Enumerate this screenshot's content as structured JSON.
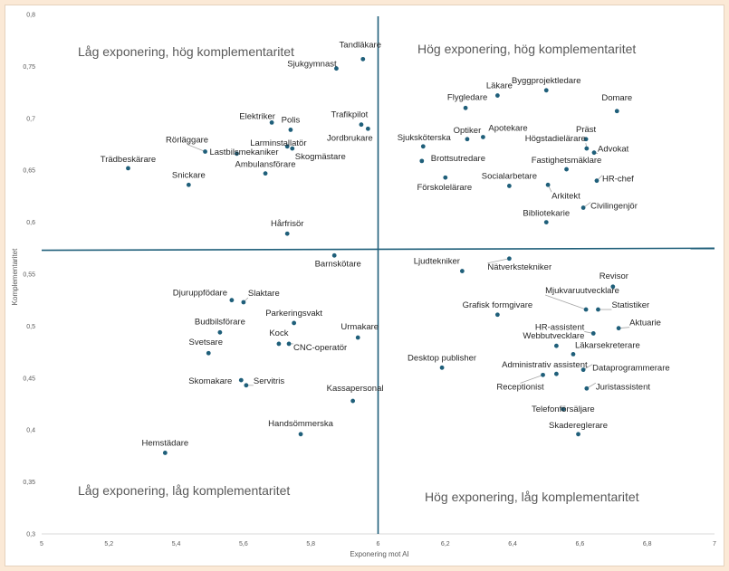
{
  "chart_data": {
    "type": "scatter",
    "xlabel": "Exponering mot AI",
    "ylabel": "Komplementaritet",
    "xlim": [
      5,
      7
    ],
    "ylim": [
      0.3,
      0.8
    ],
    "x_ticks": [
      "5",
      "5,2",
      "5,4",
      "5,6",
      "5,8",
      "6",
      "6,2",
      "6,4",
      "6,6",
      "6,8",
      "7"
    ],
    "y_ticks": [
      "0,3",
      "0,35",
      "0,4",
      "0,45",
      "0,5",
      "0,55",
      "0,6",
      "0,65",
      "0,7",
      "0,75",
      "0,8"
    ],
    "x_tick_values": [
      5,
      5.2,
      5.4,
      5.6,
      5.8,
      6,
      6.2,
      6.4,
      6.6,
      6.8,
      7
    ],
    "y_tick_values": [
      0.3,
      0.35,
      0.4,
      0.45,
      0.5,
      0.55,
      0.6,
      0.65,
      0.7,
      0.75,
      0.8
    ],
    "divider_x": 6.0,
    "divider_y": [
      0.573,
      0.575
    ],
    "grid": false,
    "point_color": "#1f5f7a",
    "quadrant_labels": {
      "top_left": "Låg exponering, hög komplementaritet",
      "top_right": "Hög exponering, hög komplementaritet",
      "bottom_left": "Låg exponering, låg komplementaritet",
      "bottom_right": "Hög exponering, låg komplementaritet"
    },
    "points": [
      {
        "name": "Tandläkare",
        "x": 5.955,
        "y": 0.757
      },
      {
        "name": "Sjukgymnast",
        "x": 5.876,
        "y": 0.748
      },
      {
        "name": "Byggprojektledare",
        "x": 6.5,
        "y": 0.727
      },
      {
        "name": "Läkare",
        "x": 6.355,
        "y": 0.722
      },
      {
        "name": "Flygledare",
        "x": 6.26,
        "y": 0.71
      },
      {
        "name": "Domare",
        "x": 6.71,
        "y": 0.707
      },
      {
        "name": "Elektriker",
        "x": 5.684,
        "y": 0.696
      },
      {
        "name": "Polis",
        "x": 5.74,
        "y": 0.689
      },
      {
        "name": "Trafikpilot",
        "x": 5.95,
        "y": 0.694
      },
      {
        "name": "Jordbrukare",
        "x": 5.97,
        "y": 0.69
      },
      {
        "name": "Larminstallatör",
        "x": 5.73,
        "y": 0.673
      },
      {
        "name": "Skogmästare",
        "x": 5.745,
        "y": 0.671
      },
      {
        "name": "Rörläggare",
        "x": 5.486,
        "y": 0.668
      },
      {
        "name": "Lastbilsmekaniker",
        "x": 5.58,
        "y": 0.666
      },
      {
        "name": "Optiker",
        "x": 6.265,
        "y": 0.68
      },
      {
        "name": "Apotekare",
        "x": 6.312,
        "y": 0.682
      },
      {
        "name": "Sjuksköterska",
        "x": 6.134,
        "y": 0.673
      },
      {
        "name": "Präst",
        "x": 6.618,
        "y": 0.68
      },
      {
        "name": "Högstadielärare",
        "x": 6.62,
        "y": 0.671
      },
      {
        "name": "Advokat",
        "x": 6.642,
        "y": 0.667
      },
      {
        "name": "Brottsutredare",
        "x": 6.13,
        "y": 0.659
      },
      {
        "name": "Fastighetsmäklare",
        "x": 6.56,
        "y": 0.651
      },
      {
        "name": "Trädbeskärare",
        "x": 5.257,
        "y": 0.652
      },
      {
        "name": "Ambulansförare",
        "x": 5.665,
        "y": 0.647
      },
      {
        "name": "Snickare",
        "x": 5.437,
        "y": 0.636
      },
      {
        "name": "Socialarbetare",
        "x": 6.39,
        "y": 0.635
      },
      {
        "name": "Förskolelärare",
        "x": 6.2,
        "y": 0.643
      },
      {
        "name": "Arkitekt",
        "x": 6.505,
        "y": 0.636
      },
      {
        "name": "HR-chef",
        "x": 6.65,
        "y": 0.64
      },
      {
        "name": "Civilingenjör",
        "x": 6.61,
        "y": 0.614
      },
      {
        "name": "Bibliotekarie",
        "x": 6.5,
        "y": 0.6
      },
      {
        "name": "Hårfrisör",
        "x": 5.73,
        "y": 0.589
      },
      {
        "name": "Barnskötare",
        "x": 5.87,
        "y": 0.568
      },
      {
        "name": "Nätverkstekniker",
        "x": 6.39,
        "y": 0.565
      },
      {
        "name": "Ljudtekniker",
        "x": 6.25,
        "y": 0.553
      },
      {
        "name": "Revisor",
        "x": 6.698,
        "y": 0.538
      },
      {
        "name": "Slaktare",
        "x": 5.6,
        "y": 0.523
      },
      {
        "name": "Djuruppfödare",
        "x": 5.565,
        "y": 0.525
      },
      {
        "name": "Mjukvaruutvecklare",
        "x": 6.618,
        "y": 0.516
      },
      {
        "name": "Statistiker",
        "x": 6.654,
        "y": 0.516
      },
      {
        "name": "Grafisk formgivare",
        "x": 6.355,
        "y": 0.511
      },
      {
        "name": "Parkeringsvakt",
        "x": 5.75,
        "y": 0.503
      },
      {
        "name": "Aktuarie",
        "x": 6.715,
        "y": 0.498
      },
      {
        "name": "HR-assistent",
        "x": 6.64,
        "y": 0.493
      },
      {
        "name": "Budbilsförare",
        "x": 5.53,
        "y": 0.494
      },
      {
        "name": "Urmakare",
        "x": 5.94,
        "y": 0.489
      },
      {
        "name": "Kock",
        "x": 5.705,
        "y": 0.483
      },
      {
        "name": "CNC-operatör",
        "x": 5.735,
        "y": 0.483
      },
      {
        "name": "Webbutvecklare",
        "x": 6.53,
        "y": 0.481
      },
      {
        "name": "Läkarsekreterare",
        "x": 6.58,
        "y": 0.473
      },
      {
        "name": "Svetsare",
        "x": 5.496,
        "y": 0.474
      },
      {
        "name": "Desktop publisher",
        "x": 6.19,
        "y": 0.46
      },
      {
        "name": "Dataprogrammerare",
        "x": 6.61,
        "y": 0.458
      },
      {
        "name": "Administrativ assistent",
        "x": 6.53,
        "y": 0.454
      },
      {
        "name": "Receptionist",
        "x": 6.49,
        "y": 0.453
      },
      {
        "name": "Skomakare",
        "x": 5.593,
        "y": 0.448
      },
      {
        "name": "Servitris",
        "x": 5.608,
        "y": 0.443
      },
      {
        "name": "Juristassistent",
        "x": 6.62,
        "y": 0.44
      },
      {
        "name": "Kassapersonal",
        "x": 5.925,
        "y": 0.428
      },
      {
        "name": "Telefonförsäljare",
        "x": 6.55,
        "y": 0.42
      },
      {
        "name": "Handsömmerska",
        "x": 5.77,
        "y": 0.396
      },
      {
        "name": "Skadereglerare",
        "x": 6.595,
        "y": 0.396
      },
      {
        "name": "Hemstädare",
        "x": 5.367,
        "y": 0.378
      }
    ]
  }
}
